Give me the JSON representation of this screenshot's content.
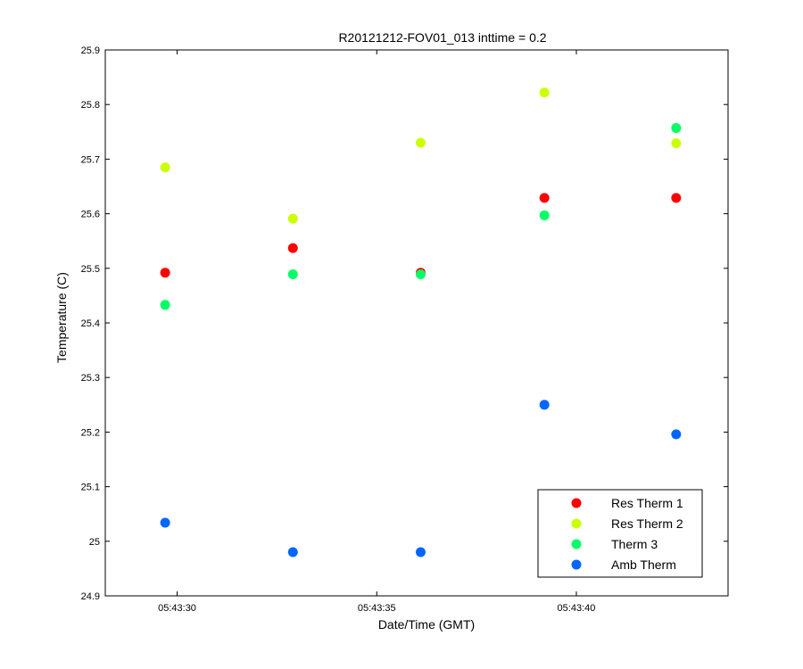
{
  "chart_data": {
    "type": "scatter",
    "title": "R20121212-FOV01_013 inttime = 0.2",
    "xlabel": "Date/Time (GMT)",
    "ylabel": "Temperature (C)",
    "x_tick_values": [
      "05:43:30",
      "05:43:35",
      "05:43:40"
    ],
    "x_tick_labels": [
      "05:43:30",
      "05:43:35",
      "05:43:40"
    ],
    "xlim": [
      "05:43:28.2",
      "05:43:43.8"
    ],
    "ylim": [
      24.9,
      25.9
    ],
    "y_ticks": [
      24.9,
      25,
      25.1,
      25.2,
      25.3,
      25.4,
      25.5,
      25.6,
      25.7,
      25.8,
      25.9
    ],
    "y_tick_labels": [
      "24.9",
      "25",
      "25.1",
      "25.2",
      "25.3",
      "25.4",
      "25.5",
      "25.6",
      "25.7",
      "25.8",
      "25.9"
    ],
    "x": [
      "05:43:29.7",
      "05:43:32.9",
      "05:43:36.1",
      "05:43:39.2",
      "05:43:42.5"
    ],
    "grid": false,
    "legend_position": "bottom-right",
    "series": [
      {
        "name": "Res Therm 1",
        "color": "#ff0000",
        "values": [
          25.492,
          25.537,
          25.492,
          25.629,
          25.629
        ]
      },
      {
        "name": "Res Therm 2",
        "color": "#ccff00",
        "values": [
          25.685,
          25.591,
          25.73,
          25.822,
          25.729
        ]
      },
      {
        "name": "Therm 3",
        "color": "#00ff66",
        "values": [
          25.433,
          25.489,
          25.489,
          25.597,
          25.757
        ]
      },
      {
        "name": "Amb Therm",
        "color": "#0066ff",
        "values": [
          25.034,
          24.98,
          24.98,
          25.25,
          25.196
        ]
      }
    ]
  }
}
